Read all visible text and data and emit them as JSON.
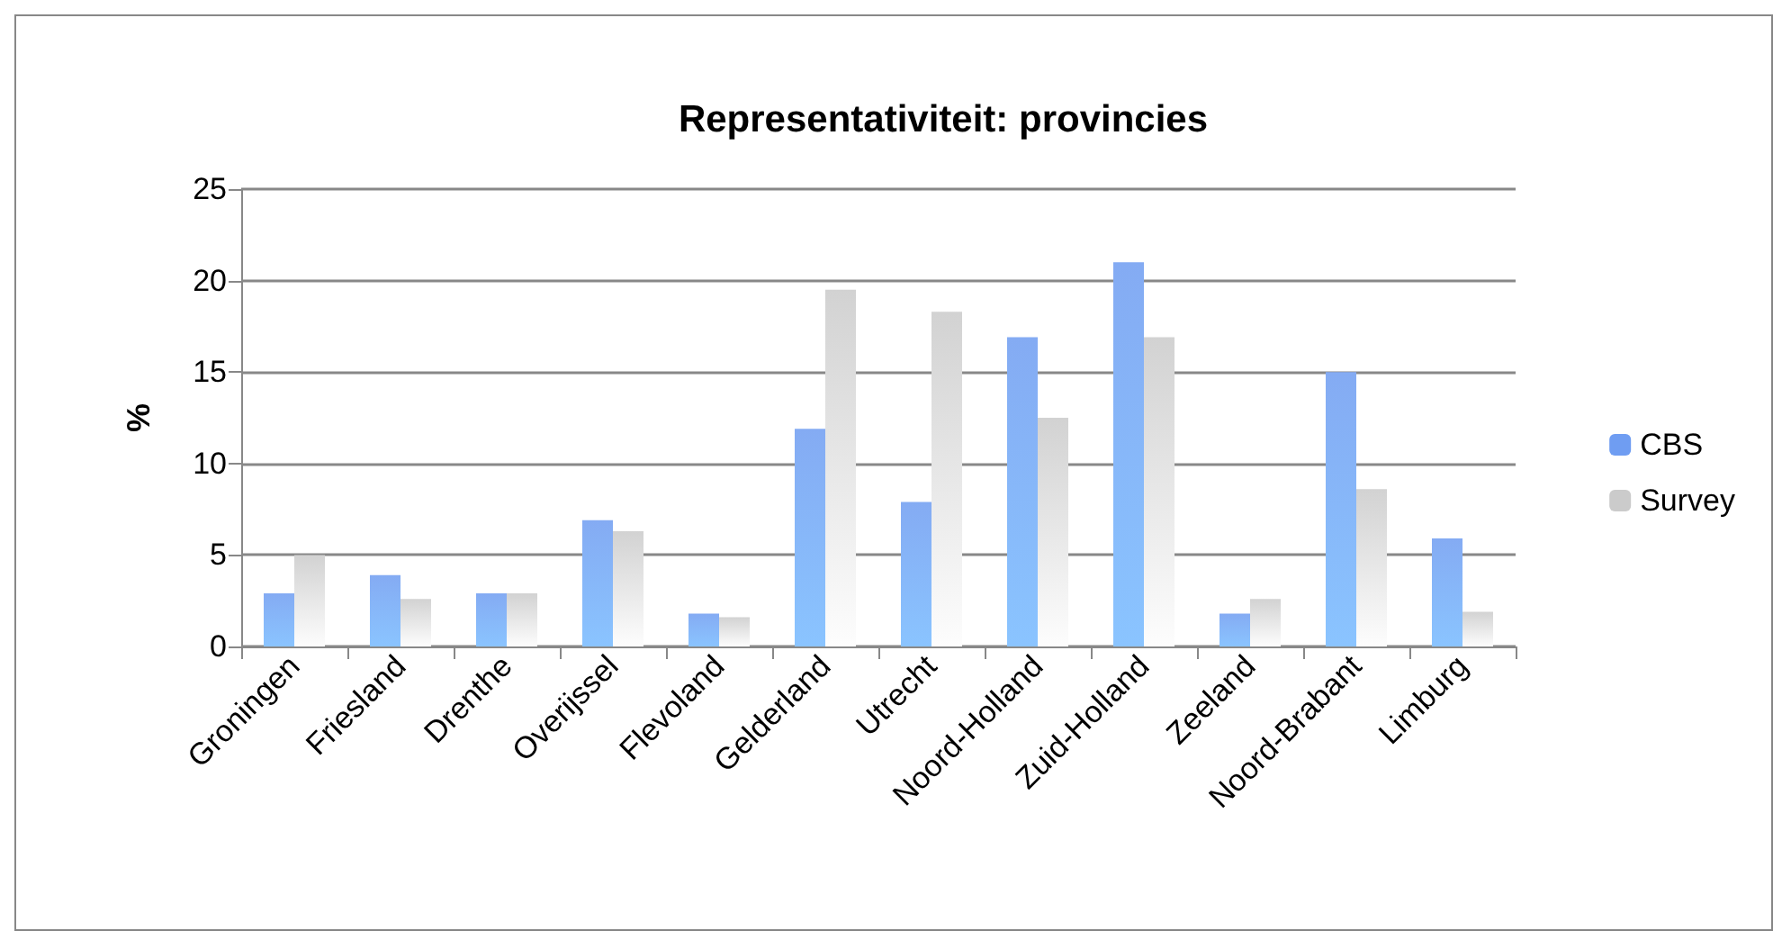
{
  "chart_data": {
    "type": "bar",
    "title": "Representativiteit: provincies",
    "ylabel": "%",
    "categories": [
      "Groningen",
      "Friesland",
      "Drenthe",
      "Overijssel",
      "Flevoland",
      "Gelderland",
      "Utrecht",
      "Noord-Holland",
      "Zuid-Holland",
      "Zeeland",
      "Noord-Brabant",
      "Limburg"
    ],
    "series": [
      {
        "name": "CBS",
        "color": "#6f9df2",
        "values": [
          2.9,
          3.9,
          2.9,
          6.9,
          1.8,
          11.9,
          7.9,
          16.9,
          21.0,
          1.8,
          15.0,
          5.9
        ]
      },
      {
        "name": "Survey",
        "color": "#cbcbcb",
        "values": [
          5.0,
          2.6,
          2.9,
          6.3,
          1.6,
          19.5,
          18.3,
          12.5,
          16.9,
          2.6,
          8.6,
          1.9
        ]
      }
    ],
    "ylim": [
      0,
      25
    ],
    "yticks": [
      0,
      5,
      10,
      15,
      20,
      25
    ],
    "grid": "y",
    "legend": "right"
  }
}
